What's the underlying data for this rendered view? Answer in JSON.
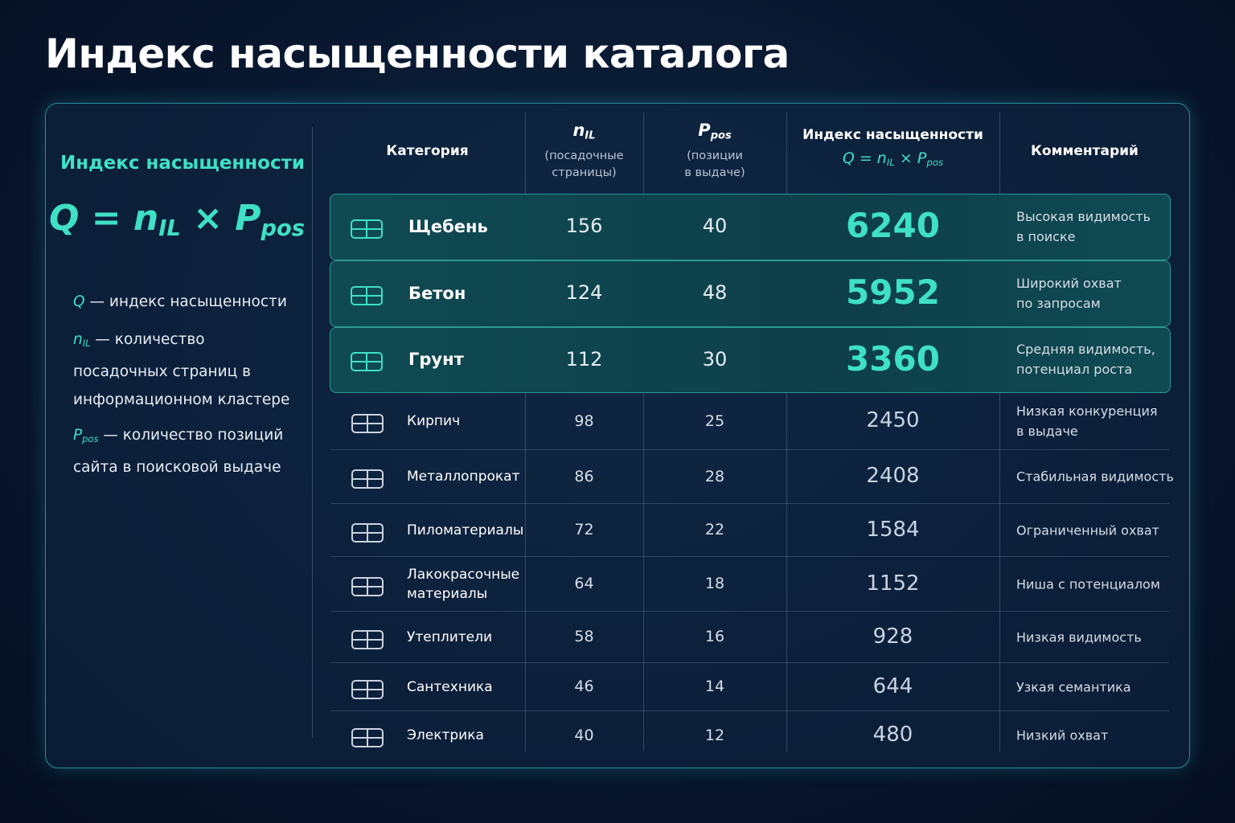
{
  "header": {
    "title": "Индекс насыщенности каталога"
  },
  "formula_panel": {
    "label": "Индекс насыщенности",
    "formula": [
      {
        "text": "Q = n"
      },
      {
        "text": "IL",
        "sub": true
      },
      {
        "text": " × P"
      },
      {
        "text": "pos",
        "sub": true
      }
    ],
    "definitions": [
      {
        "symbol": "Q",
        "sub": "",
        "text": " — индекс насыщенности"
      },
      {
        "symbol": "n",
        "sub": "IL",
        "text": " — количество посадочных страниц в информационном кластере"
      },
      {
        "symbol": "P",
        "sub": "pos",
        "text": " — количество позиций сайта в поисковой выдаче"
      }
    ]
  },
  "table": {
    "columns": [
      {
        "title": "Категория"
      },
      {
        "symbol": "n",
        "sub": "IL",
        "note": [
          "(посадочные",
          "страницы)"
        ]
      },
      {
        "symbol": "P",
        "sub": "pos",
        "note": [
          "(позиции",
          "в выдаче)"
        ]
      },
      {
        "title": "Индекс насыщенности",
        "formula": [
          {
            "text": "Q = n"
          },
          {
            "text": "IL",
            "sub": true
          },
          {
            "text": " × P"
          },
          {
            "text": "pos",
            "sub": true
          }
        ]
      },
      {
        "title": "Комментарий"
      }
    ],
    "rows": [
      {
        "category": [
          "Щебень"
        ],
        "n": "156",
        "p": "40",
        "q": "6240",
        "comment": [
          "Высокая видимость",
          "в поиске"
        ],
        "highlight": true
      },
      {
        "category": [
          "Бетон"
        ],
        "n": "124",
        "p": "48",
        "q": "5952",
        "comment": [
          "Широкий охват",
          "по запросам"
        ],
        "highlight": true
      },
      {
        "category": [
          "Грунт"
        ],
        "n": "112",
        "p": "30",
        "q": "3360",
        "comment": [
          "Средняя видимость,",
          "потенциал роста"
        ],
        "highlight": true
      },
      {
        "category": [
          "Кирпич"
        ],
        "n": "98",
        "p": "25",
        "q": "2450",
        "comment": [
          "Низкая конкуренция",
          "в выдаче"
        ],
        "highlight": false
      },
      {
        "category": [
          "Металлопрокат"
        ],
        "n": "86",
        "p": "28",
        "q": "2408",
        "comment": [
          "Стабильная видимость"
        ],
        "highlight": false
      },
      {
        "category": [
          "Пиломатериалы"
        ],
        "n": "72",
        "p": "22",
        "q": "1584",
        "comment": [
          "Ограниченный охват"
        ],
        "highlight": false
      },
      {
        "category": [
          "Лакокрасочные",
          "материалы"
        ],
        "n": "64",
        "p": "18",
        "q": "1152",
        "comment": [
          "Ниша с потенциалом"
        ],
        "highlight": false
      },
      {
        "category": [
          "Утеплители"
        ],
        "n": "58",
        "p": "16",
        "q": "928",
        "comment": [
          "Низкая видимость"
        ],
        "highlight": false
      },
      {
        "category": [
          "Сантехника"
        ],
        "n": "46",
        "p": "14",
        "q": "644",
        "comment": [
          "Узкая семантика"
        ],
        "highlight": false
      },
      {
        "category": [
          "Электрика"
        ],
        "n": "40",
        "p": "12",
        "q": "480",
        "comment": [
          "Низкий охват"
        ],
        "highlight": false
      }
    ]
  }
}
